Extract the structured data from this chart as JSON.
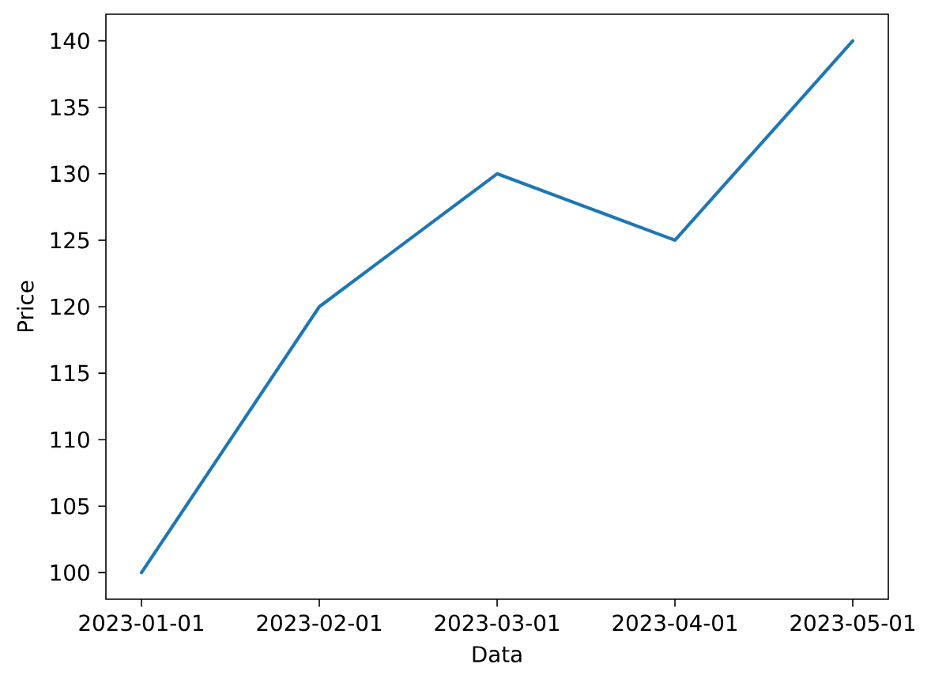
{
  "chart_data": {
    "type": "line",
    "xlabel": "Data",
    "ylabel": "Price",
    "categories": [
      "2023-01-01",
      "2023-02-01",
      "2023-03-01",
      "2023-04-01",
      "2023-05-01"
    ],
    "series": [
      {
        "color": "#1f77b4",
        "values": [
          100,
          120,
          130,
          125,
          140
        ]
      }
    ],
    "ylim": [
      98,
      142
    ],
    "yticks": [
      100,
      105,
      110,
      115,
      120,
      125,
      130,
      135,
      140
    ],
    "line_style": "solid"
  }
}
